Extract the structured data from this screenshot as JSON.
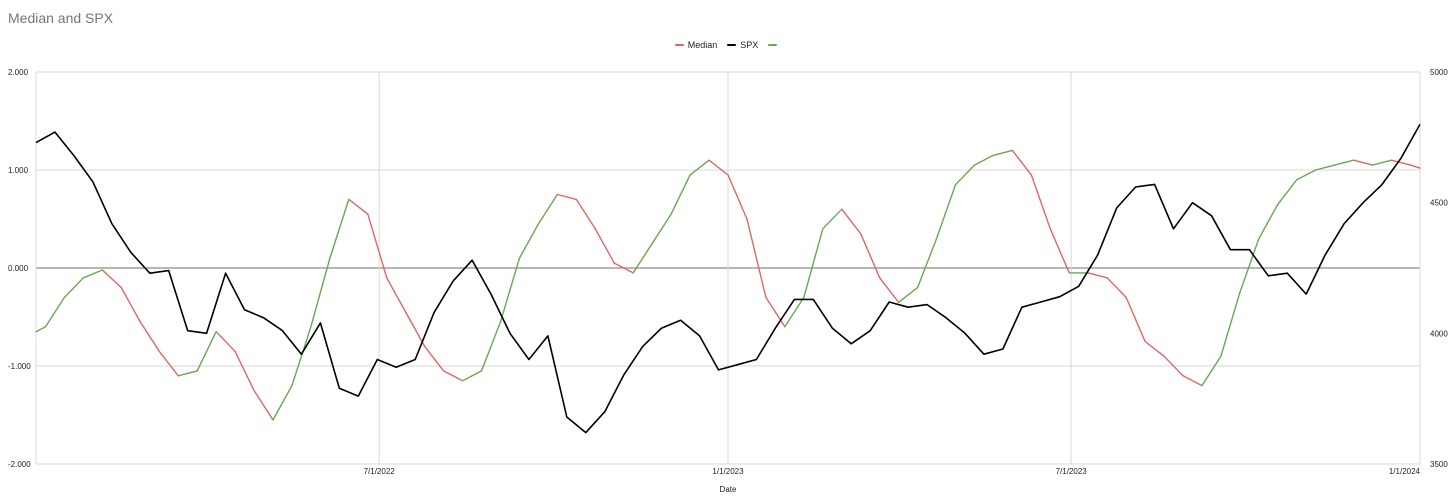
{
  "chart_data": {
    "type": "line",
    "title": "Median and SPX",
    "xlabel": "Date",
    "ylabel": "",
    "y2label": "",
    "xlim": [
      "2022-01-01",
      "2024-01-01"
    ],
    "ylim": [
      -2,
      2
    ],
    "y2lim": [
      3500,
      5000
    ],
    "grid": true,
    "legend_position": "top-center",
    "x_ticks": [
      {
        "date": "2022-07-01",
        "label": "7/1/2022"
      },
      {
        "date": "2023-01-01",
        "label": "1/1/2023"
      },
      {
        "date": "2023-07-01",
        "label": "7/1/2023"
      },
      {
        "date": "2024-01-01",
        "label": "1/1/2024"
      }
    ],
    "y_ticks": [
      {
        "value": 2,
        "label": "2.000"
      },
      {
        "value": 1,
        "label": "1.000"
      },
      {
        "value": 0,
        "label": "0.000"
      },
      {
        "value": -1,
        "label": "-1.000"
      },
      {
        "value": -2,
        "label": "-2.000"
      }
    ],
    "y2_ticks": [
      {
        "value": 5000,
        "label": "5000"
      },
      {
        "value": 4500,
        "label": "4500"
      },
      {
        "value": 4000,
        "label": "4000"
      },
      {
        "value": 3500,
        "label": "3500"
      }
    ],
    "legend": [
      {
        "name": "Median",
        "color": "#e06666"
      },
      {
        "name": "SPX",
        "color": "#000000"
      },
      {
        "name": "",
        "color": "#6aa84f"
      }
    ],
    "median_colors": {
      "positive_slope": "#6aa84f",
      "negative_slope": "#e06666"
    },
    "median": {
      "axis": "left",
      "x": [
        "2022-01-01",
        "2022-01-06",
        "2022-01-16",
        "2022-01-26",
        "2022-02-05",
        "2022-02-15",
        "2022-02-25",
        "2022-03-07",
        "2022-03-17",
        "2022-03-27",
        "2022-04-06",
        "2022-04-16",
        "2022-04-26",
        "2022-05-06",
        "2022-05-16",
        "2022-05-26",
        "2022-06-05",
        "2022-06-15",
        "2022-06-25",
        "2022-07-05",
        "2022-07-15",
        "2022-07-25",
        "2022-08-04",
        "2022-08-14",
        "2022-08-24",
        "2022-09-03",
        "2022-09-13",
        "2022-09-23",
        "2022-10-03",
        "2022-10-13",
        "2022-10-23",
        "2022-11-02",
        "2022-11-12",
        "2022-11-22",
        "2022-12-02",
        "2022-12-12",
        "2022-12-22",
        "2023-01-01",
        "2023-01-11",
        "2023-01-21",
        "2023-01-31",
        "2023-02-10",
        "2023-02-20",
        "2023-03-02",
        "2023-03-12",
        "2023-03-22",
        "2023-04-01",
        "2023-04-11",
        "2023-04-21",
        "2023-05-01",
        "2023-05-11",
        "2023-05-21",
        "2023-05-31",
        "2023-06-10",
        "2023-06-20",
        "2023-06-30",
        "2023-07-10",
        "2023-07-20",
        "2023-07-30",
        "2023-08-09",
        "2023-08-19",
        "2023-08-29",
        "2023-09-08",
        "2023-09-18",
        "2023-09-28",
        "2023-10-08",
        "2023-10-18",
        "2023-10-28",
        "2023-11-07",
        "2023-11-17",
        "2023-11-27",
        "2023-12-07",
        "2023-12-17",
        "2023-12-27",
        "2024-01-01"
      ],
      "values": [
        -0.65,
        -0.6,
        -0.3,
        -0.1,
        -0.02,
        -0.2,
        -0.55,
        -0.85,
        -1.1,
        -1.05,
        -0.65,
        -0.85,
        -1.25,
        -1.55,
        -1.2,
        -0.6,
        0.1,
        0.7,
        0.55,
        -0.1,
        -0.45,
        -0.8,
        -1.05,
        -1.15,
        -1.05,
        -0.55,
        0.1,
        0.45,
        0.75,
        0.7,
        0.4,
        0.05,
        -0.05,
        0.25,
        0.55,
        0.95,
        1.1,
        0.95,
        0.5,
        -0.3,
        -0.6,
        -0.3,
        0.4,
        0.6,
        0.35,
        -0.1,
        -0.35,
        -0.2,
        0.3,
        0.85,
        1.05,
        1.15,
        1.2,
        0.95,
        0.4,
        -0.05,
        -0.05,
        -0.1,
        -0.3,
        -0.75,
        -0.9,
        -1.1,
        -1.2,
        -0.9,
        -0.25,
        0.3,
        0.65,
        0.9,
        1.0,
        1.05,
        1.1,
        1.05,
        1.1,
        1.05,
        1.02
      ]
    },
    "spx": {
      "axis": "right",
      "name": "SPX",
      "x": [
        "2022-01-01",
        "2022-01-11",
        "2022-01-21",
        "2022-01-31",
        "2022-02-10",
        "2022-02-20",
        "2022-03-02",
        "2022-03-12",
        "2022-03-22",
        "2022-04-01",
        "2022-04-11",
        "2022-04-21",
        "2022-05-01",
        "2022-05-11",
        "2022-05-21",
        "2022-05-31",
        "2022-06-10",
        "2022-06-20",
        "2022-06-30",
        "2022-07-10",
        "2022-07-20",
        "2022-07-30",
        "2022-08-09",
        "2022-08-19",
        "2022-08-29",
        "2022-09-08",
        "2022-09-18",
        "2022-09-28",
        "2022-10-08",
        "2022-10-18",
        "2022-10-28",
        "2022-11-07",
        "2022-11-17",
        "2022-11-27",
        "2022-12-07",
        "2022-12-17",
        "2022-12-27",
        "2023-01-06",
        "2023-01-16",
        "2023-01-26",
        "2023-02-05",
        "2023-02-15",
        "2023-02-25",
        "2023-03-07",
        "2023-03-17",
        "2023-03-27",
        "2023-04-06",
        "2023-04-16",
        "2023-04-26",
        "2023-05-06",
        "2023-05-16",
        "2023-05-26",
        "2023-06-05",
        "2023-06-15",
        "2023-06-25",
        "2023-07-05",
        "2023-07-15",
        "2023-07-25",
        "2023-08-04",
        "2023-08-14",
        "2023-08-24",
        "2023-09-03",
        "2023-09-13",
        "2023-09-23",
        "2023-10-03",
        "2023-10-13",
        "2023-10-23",
        "2023-11-02",
        "2023-11-12",
        "2023-11-22",
        "2023-12-02",
        "2023-12-12",
        "2023-12-22",
        "2024-01-01"
      ],
      "values": [
        4730,
        4770,
        4680,
        4580,
        4420,
        4310,
        4230,
        4240,
        4010,
        4000,
        4230,
        4090,
        4060,
        4010,
        3920,
        4040,
        3790,
        3760,
        3900,
        3870,
        3900,
        4080,
        4200,
        4280,
        4150,
        4000,
        3900,
        3990,
        3680,
        3620,
        3700,
        3840,
        3950,
        4020,
        4050,
        3990,
        3860,
        3880,
        3900,
        4020,
        4130,
        4130,
        4020,
        3960,
        4010,
        4120,
        4100,
        4110,
        4060,
        4000,
        3920,
        3940,
        4100,
        4120,
        4140,
        4180,
        4300,
        4480,
        4560,
        4570,
        4400,
        4500,
        4450,
        4320,
        4320,
        4220,
        4230,
        4150,
        4300,
        4420,
        4500,
        4570,
        4670,
        4800
      ]
    }
  }
}
